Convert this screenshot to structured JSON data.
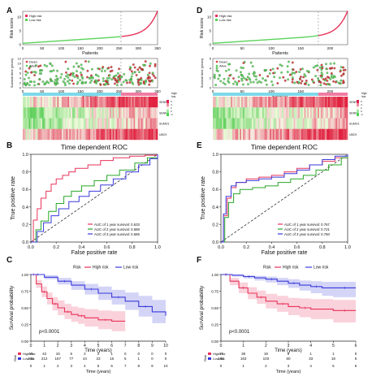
{
  "panels": {
    "A": {
      "letter": "A"
    },
    "B": {
      "letter": "B"
    },
    "C": {
      "letter": "C"
    },
    "D": {
      "letter": "D"
    },
    "E": {
      "letter": "E"
    },
    "F": {
      "letter": "F"
    }
  },
  "colors": {
    "high_risk": "#e8335a",
    "low_risk": "#3a3adb",
    "heat_high": "#e0204a",
    "heat_low": "#4fd24f",
    "alive": "#5cd35c",
    "dead": "#d83a3a",
    "roc1": "#e8335a",
    "roc2": "#27a827",
    "roc3": "#3a3adb"
  },
  "chart_data": [
    {
      "panel": "A",
      "type": "line",
      "subplot": "risk-score",
      "xlabel": "Patients",
      "ylabel": "Risk score",
      "x_ticks": [
        "0",
        "50",
        "100",
        "150",
        "200",
        "250",
        "300",
        "350"
      ],
      "y_ticks": [
        "0",
        "5",
        "10"
      ],
      "xlim": [
        0,
        350
      ],
      "ylim": [
        0,
        12
      ],
      "cutoff_index": 255,
      "legend": [
        "High risk",
        "Low risk"
      ]
    },
    {
      "panel": "A",
      "type": "scatter",
      "subplot": "survival-status",
      "xlabel": "Patients",
      "ylabel": "Survival time (years)",
      "x_ticks": [
        "0",
        "50",
        "100",
        "150",
        "200",
        "250",
        "300",
        "350"
      ],
      "y_ticks": [
        "0",
        "2",
        "4",
        "6",
        "8",
        "10",
        "12"
      ],
      "legend": [
        "Dead",
        "Alive"
      ]
    },
    {
      "panel": "A",
      "type": "heatmap",
      "row_labels": [
        "SENP2",
        "SENP5",
        "SUMO1",
        "UBC9"
      ],
      "legend_type": [
        "high",
        "low"
      ],
      "legend_scale": [
        "6",
        "4",
        "2",
        "0",
        "-2"
      ]
    },
    {
      "panel": "B",
      "type": "line",
      "title": "Time dependent ROC",
      "xlabel": "False positive rate",
      "ylabel": "True positive rate",
      "x_ticks": [
        "0.0",
        "0.2",
        "0.4",
        "0.6",
        "0.8",
        "1.0"
      ],
      "y_ticks": [
        "0.0",
        "0.2",
        "0.4",
        "0.6",
        "0.8",
        "1.0"
      ],
      "series": [
        {
          "name": "AUC of 1 year survival: 0.633",
          "x": [
            0,
            0.02,
            0.05,
            0.08,
            0.12,
            0.16,
            0.2,
            0.25,
            0.3,
            0.35,
            0.45,
            0.55,
            0.65,
            0.78,
            0.9,
            1.0
          ],
          "y": [
            0,
            0.25,
            0.38,
            0.5,
            0.58,
            0.66,
            0.72,
            0.76,
            0.8,
            0.84,
            0.88,
            0.93,
            0.96,
            0.98,
            0.99,
            1.0
          ]
        },
        {
          "name": "AUC of 2 year survival: 0.688",
          "x": [
            0,
            0.04,
            0.08,
            0.14,
            0.2,
            0.26,
            0.32,
            0.4,
            0.5,
            0.6,
            0.7,
            0.82,
            0.92,
            1.0
          ],
          "y": [
            0,
            0.14,
            0.24,
            0.35,
            0.44,
            0.52,
            0.58,
            0.64,
            0.7,
            0.76,
            0.82,
            0.9,
            0.96,
            1.0
          ]
        },
        {
          "name": "AUC of 3 year survival: 0.685",
          "x": [
            0,
            0.05,
            0.1,
            0.16,
            0.22,
            0.3,
            0.38,
            0.46,
            0.55,
            0.65,
            0.75,
            0.85,
            0.94,
            1.0
          ],
          "y": [
            0,
            0.12,
            0.22,
            0.3,
            0.38,
            0.46,
            0.52,
            0.58,
            0.65,
            0.72,
            0.8,
            0.88,
            0.95,
            1.0
          ]
        }
      ]
    },
    {
      "panel": "C",
      "type": "line",
      "xlabel": "Time (years)",
      "ylabel": "Survival probability",
      "x_ticks": [
        "0",
        "1",
        "2",
        "3",
        "4",
        "5",
        "6",
        "7",
        "8",
        "9",
        "10"
      ],
      "y_ticks": [
        "0.00",
        "0.25",
        "0.50",
        "0.75",
        "1.00"
      ],
      "pvalue": "p<0.0001",
      "legend_title": "Risk",
      "legend": [
        "High risk",
        "Low risk"
      ],
      "series": [
        {
          "name": "High risk",
          "x": [
            0,
            0.4,
            0.8,
            1.2,
            1.6,
            2.0,
            2.5,
            3.0,
            3.5,
            4.0,
            5.0,
            6.0,
            7.0
          ],
          "y": [
            1.0,
            0.86,
            0.74,
            0.64,
            0.56,
            0.5,
            0.44,
            0.4,
            0.38,
            0.35,
            0.32,
            0.3,
            0.3
          ],
          "lo": [
            1.0,
            0.8,
            0.66,
            0.55,
            0.46,
            0.39,
            0.33,
            0.29,
            0.26,
            0.22,
            0.18,
            0.15,
            0.15
          ],
          "hi": [
            1.0,
            0.92,
            0.82,
            0.73,
            0.66,
            0.61,
            0.56,
            0.52,
            0.5,
            0.48,
            0.46,
            0.45,
            0.45
          ]
        },
        {
          "name": "Low risk",
          "x": [
            0,
            1,
            2,
            3,
            4,
            5,
            6,
            7,
            8,
            9,
            10
          ],
          "y": [
            1.0,
            0.96,
            0.9,
            0.84,
            0.78,
            0.72,
            0.66,
            0.6,
            0.52,
            0.44,
            0.38
          ],
          "lo": [
            1.0,
            0.93,
            0.85,
            0.77,
            0.7,
            0.62,
            0.55,
            0.47,
            0.37,
            0.27,
            0.2
          ],
          "hi": [
            1.0,
            0.99,
            0.95,
            0.9,
            0.86,
            0.82,
            0.77,
            0.73,
            0.68,
            0.62,
            0.58
          ]
        }
      ],
      "risk_table": {
        "title": "Risk",
        "rows": [
          {
            "name": "High risk",
            "values": [
              "65",
              "42",
              "16",
              "6",
              "2",
              "2",
              "1",
              "0",
              "0",
              "0",
              "0"
            ]
          },
          {
            "name": "Low risk",
            "values": [
              "231",
              "212",
              "167",
              "77",
              "44",
              "23",
              "16",
              "5",
              "1",
              "0",
              "0"
            ]
          }
        ],
        "xlabel": "Time (years)"
      }
    },
    {
      "panel": "D",
      "type": "line",
      "subplot": "risk-score",
      "xlabel": "Patients",
      "ylabel": "Risk score",
      "x_ticks": [
        "0",
        "50",
        "100",
        "150",
        "200"
      ],
      "y_ticks": [
        "0",
        "5",
        "10"
      ],
      "xlim": [
        0,
        230
      ],
      "ylim": [
        0,
        12
      ],
      "cutoff_index": 180,
      "legend": [
        "High risk",
        "Low risk"
      ]
    },
    {
      "panel": "D",
      "type": "scatter",
      "subplot": "survival-status",
      "xlabel": "Patients",
      "ylabel": "Survival time (years)",
      "x_ticks": [
        "0",
        "50",
        "100",
        "150",
        "200"
      ],
      "y_ticks": [
        "0",
        "2",
        "4",
        "6"
      ],
      "legend": [
        "Dead",
        "Alive"
      ]
    },
    {
      "panel": "D",
      "type": "heatmap",
      "row_labels": [
        "SENP2",
        "SENP5",
        "SUMO1",
        "UBC9"
      ],
      "legend_type": [
        "high",
        "low"
      ],
      "legend_scale": [
        "6",
        "4",
        "2",
        "0",
        "-2"
      ]
    },
    {
      "panel": "E",
      "type": "line",
      "title": "Time dependent ROC",
      "xlabel": "False positive rate",
      "ylabel": "True positive rate",
      "x_ticks": [
        "0.0",
        "0.2",
        "0.4",
        "0.6",
        "0.8",
        "1.0"
      ],
      "y_ticks": [
        "0.0",
        "0.2",
        "0.4",
        "0.6",
        "0.8",
        "1.0"
      ],
      "series": [
        {
          "name": "AUC of 1 year survival: 0.767",
          "x": [
            0,
            0.02,
            0.05,
            0.08,
            0.12,
            0.2,
            0.3,
            0.4,
            0.5,
            0.6,
            0.7,
            0.8,
            0.9,
            1.0
          ],
          "y": [
            0,
            0.3,
            0.5,
            0.62,
            0.68,
            0.72,
            0.74,
            0.76,
            0.8,
            0.84,
            0.88,
            0.92,
            0.96,
            1.0
          ]
        },
        {
          "name": "AUC of 2 year survival: 0.721",
          "x": [
            0,
            0.03,
            0.06,
            0.1,
            0.15,
            0.25,
            0.35,
            0.45,
            0.55,
            0.65,
            0.75,
            0.85,
            0.95,
            1.0
          ],
          "y": [
            0,
            0.28,
            0.45,
            0.55,
            0.6,
            0.62,
            0.64,
            0.68,
            0.72,
            0.76,
            0.82,
            0.88,
            0.96,
            1.0
          ]
        },
        {
          "name": "AUC of 3 year survival: 0.760",
          "x": [
            0,
            0.02,
            0.04,
            0.08,
            0.12,
            0.2,
            0.3,
            0.4,
            0.5,
            0.6,
            0.7,
            0.8,
            0.9,
            1.0
          ],
          "y": [
            0,
            0.32,
            0.52,
            0.64,
            0.68,
            0.7,
            0.72,
            0.74,
            0.78,
            0.82,
            0.88,
            0.94,
            0.98,
            1.0
          ]
        }
      ]
    },
    {
      "panel": "F",
      "type": "line",
      "xlabel": "Time (years)",
      "ylabel": "Survival probability",
      "x_ticks": [
        "0",
        "1",
        "2",
        "3",
        "4",
        "5",
        "6"
      ],
      "y_ticks": [
        "0.00",
        "0.25",
        "0.50",
        "0.75",
        "1.00"
      ],
      "pvalue": "p<0.0001",
      "legend_title": "Risk",
      "legend": [
        "High risk",
        "Low risk"
      ],
      "series": [
        {
          "name": "High risk",
          "x": [
            0,
            0.4,
            0.8,
            1.2,
            1.6,
            2.0,
            2.5,
            3.0,
            3.5,
            4.0,
            5.0,
            6.0
          ],
          "y": [
            1.0,
            0.9,
            0.8,
            0.72,
            0.66,
            0.6,
            0.56,
            0.52,
            0.5,
            0.48,
            0.46,
            0.46
          ],
          "lo": [
            1.0,
            0.84,
            0.72,
            0.63,
            0.56,
            0.49,
            0.44,
            0.39,
            0.36,
            0.33,
            0.28,
            0.28
          ],
          "hi": [
            1.0,
            0.95,
            0.88,
            0.81,
            0.76,
            0.71,
            0.68,
            0.65,
            0.64,
            0.63,
            0.62,
            0.62
          ]
        },
        {
          "name": "Low risk",
          "x": [
            0,
            0.5,
            1.0,
            1.5,
            2.0,
            2.5,
            3.0,
            3.5,
            4.0,
            4.5,
            5.0,
            6.0
          ],
          "y": [
            1.0,
            0.99,
            0.97,
            0.95,
            0.93,
            0.9,
            0.87,
            0.84,
            0.82,
            0.8,
            0.8,
            0.8
          ],
          "lo": [
            1.0,
            0.97,
            0.94,
            0.91,
            0.88,
            0.84,
            0.8,
            0.76,
            0.72,
            0.68,
            0.66,
            0.66
          ],
          "hi": [
            1.0,
            1.0,
            0.99,
            0.98,
            0.97,
            0.95,
            0.93,
            0.91,
            0.9,
            0.89,
            0.89,
            0.89
          ]
        }
      ],
      "risk_table": {
        "title": "Risk",
        "rows": [
          {
            "name": "High risk",
            "values": [
              "47",
              "36",
              "19",
              "8",
              "1",
              "1",
              "0"
            ]
          },
          {
            "name": "Low risk",
            "values": [
              "182",
              "163",
              "103",
              "60",
              "33",
              "18",
              "6"
            ]
          }
        ],
        "xlabel": "Time (years)"
      }
    }
  ]
}
